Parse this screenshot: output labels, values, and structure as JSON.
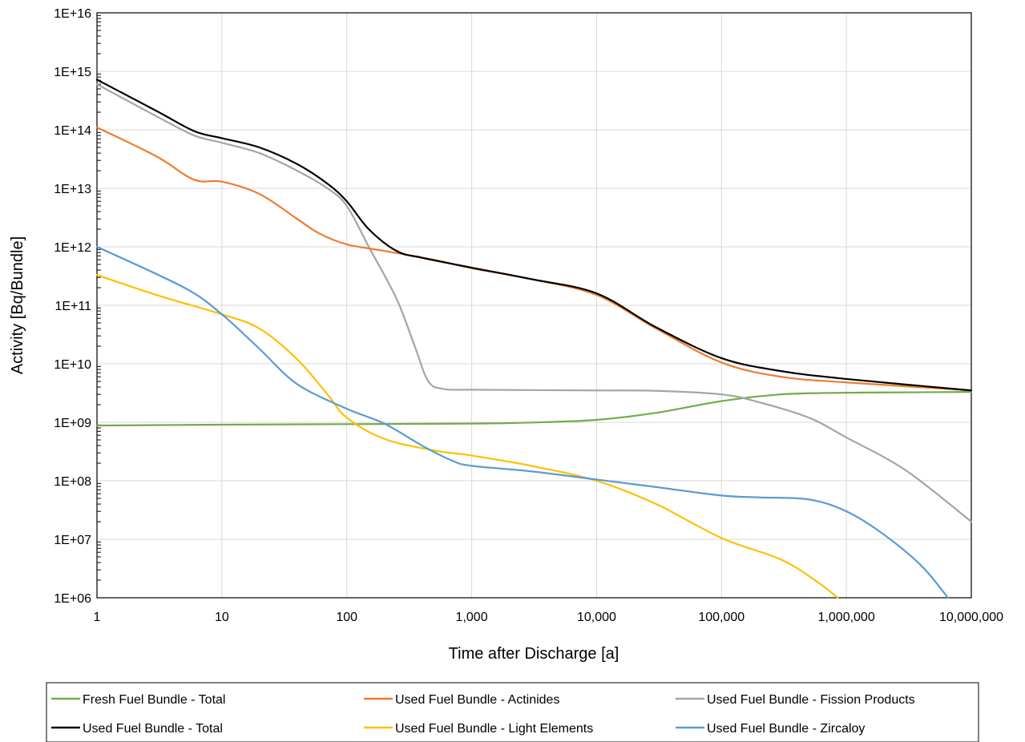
{
  "chart_data": {
    "type": "line",
    "xlabel": "Time after Discharge [a]",
    "ylabel": "Activity [Bq/Bundle]",
    "x_scale": "log",
    "y_scale": "log",
    "xlim": [
      1,
      10000000
    ],
    "ylim": [
      1000000,
      10000000000000000
    ],
    "x_ticks": [
      1,
      10,
      100,
      1000,
      10000,
      100000,
      1000000,
      10000000
    ],
    "x_tick_labels": [
      "1",
      "10",
      "100",
      "1,000",
      "10,000",
      "100,000",
      "1,000,000",
      "10,000,000"
    ],
    "y_ticks": [
      1000000.0,
      10000000.0,
      100000000.0,
      1000000000.0,
      10000000000.0,
      100000000000.0,
      1000000000000.0,
      10000000000000.0,
      100000000000000.0,
      1000000000000000.0,
      1e+16
    ],
    "y_tick_labels": [
      "1E+06",
      "1E+07",
      "1E+08",
      "1E+09",
      "1E+10",
      "1E+11",
      "1E+12",
      "1E+13",
      "1E+14",
      "1E+15",
      "1E+16"
    ],
    "grid": true,
    "legend_position": "bottom",
    "series": [
      {
        "name": "Fresh Fuel Bundle - Total",
        "color": "#70ad47",
        "x": [
          1,
          10,
          100,
          1000,
          3000,
          10000,
          30000,
          100000,
          300000,
          1000000,
          3000000,
          10000000
        ],
        "y": [
          880000000,
          910000000,
          930000000,
          950000000,
          990000000,
          1100000000,
          1450000000,
          2300000000,
          3000000000,
          3200000000,
          3250000000,
          3300000000
        ]
      },
      {
        "name": "Used Fuel Bundle - Actinides",
        "color": "#ed7d31",
        "x": [
          1,
          3,
          6,
          10,
          20,
          40,
          60,
          100,
          200,
          500,
          1000,
          3000,
          10000,
          30000,
          100000,
          300000,
          1000000,
          10000000
        ],
        "y": [
          110000000000000,
          35000000000000,
          14000000000000,
          13000000000000,
          8000000000000,
          3000000000000,
          1700000000000,
          1100000000000,
          850000000000,
          600000000000,
          430000000000,
          280000000000,
          150000000000,
          40000000000,
          10500000000,
          6000000000,
          4800000000,
          3500000000
        ]
      },
      {
        "name": "Used Fuel Bundle - Fission Products",
        "color": "#a5a5a5",
        "x": [
          1,
          3,
          6,
          10,
          20,
          40,
          70,
          100,
          150,
          250,
          350,
          450,
          600,
          1000,
          3000,
          10000,
          30000,
          100000,
          200000,
          500000,
          1000000,
          3000000,
          10000000
        ],
        "y": [
          600000000000000,
          170000000000000,
          80000000000000,
          60000000000000,
          40000000000000,
          20000000000000,
          10000000000000,
          5000000000000,
          1000000000000,
          130000000000,
          20000000000,
          5000000000,
          3700000000,
          3600000000,
          3550000000,
          3500000000,
          3450000000,
          3000000000,
          2200000000,
          1200000000,
          550000000,
          150000000,
          20000000
        ]
      },
      {
        "name": "Used Fuel Bundle - Total",
        "color": "#000000",
        "x": [
          1,
          3,
          6,
          10,
          20,
          40,
          70,
          100,
          150,
          250,
          400,
          1000,
          3000,
          10000,
          30000,
          100000,
          300000,
          1000000,
          10000000
        ],
        "y": [
          720000000000000,
          210000000000000,
          95000000000000,
          72000000000000,
          50000000000000,
          26000000000000,
          12000000000000,
          6000000000000,
          2000000000000,
          850000000000,
          650000000000,
          440000000000,
          280000000000,
          160000000000,
          42000000000,
          12500000000,
          7500000000,
          5500000000,
          3500000000
        ]
      },
      {
        "name": "Used Fuel Bundle - Light Elements",
        "color": "#ffc000",
        "x": [
          1,
          3,
          10,
          20,
          40,
          70,
          100,
          200,
          500,
          1000,
          3000,
          10000,
          30000,
          100000,
          300000,
          600000,
          850000
        ],
        "y": [
          330000000000,
          150000000000,
          70000000000,
          40000000000,
          12000000000,
          3000000000,
          1200000000,
          520000000,
          330000000,
          270000000,
          180000000,
          100000000,
          40000000,
          10500000,
          4500000,
          1800000,
          1000000
        ]
      },
      {
        "name": "Used Fuel Bundle - Zircaloy",
        "color": "#5b9bd5",
        "x": [
          1,
          5,
          10,
          20,
          40,
          100,
          200,
          400,
          700,
          1000,
          3000,
          10000,
          30000,
          100000,
          200000,
          500000,
          1000000,
          2000000,
          4000000,
          6500000
        ],
        "y": [
          1000000000000,
          200000000000,
          70000000000,
          18000000000,
          4500000000,
          1700000000,
          950000000,
          400000000,
          220000000,
          180000000,
          145000000,
          105000000,
          78000000,
          56000000,
          52000000,
          48000000,
          30000000,
          12000000,
          3500000,
          1000000
        ]
      }
    ],
    "legend_rows": [
      [
        "Fresh Fuel Bundle - Total",
        "Used Fuel Bundle - Actinides",
        "Used Fuel Bundle - Fission Products"
      ],
      [
        "Used Fuel Bundle - Total",
        "Used Fuel Bundle - Light Elements",
        "Used Fuel Bundle - Zircaloy"
      ]
    ]
  }
}
